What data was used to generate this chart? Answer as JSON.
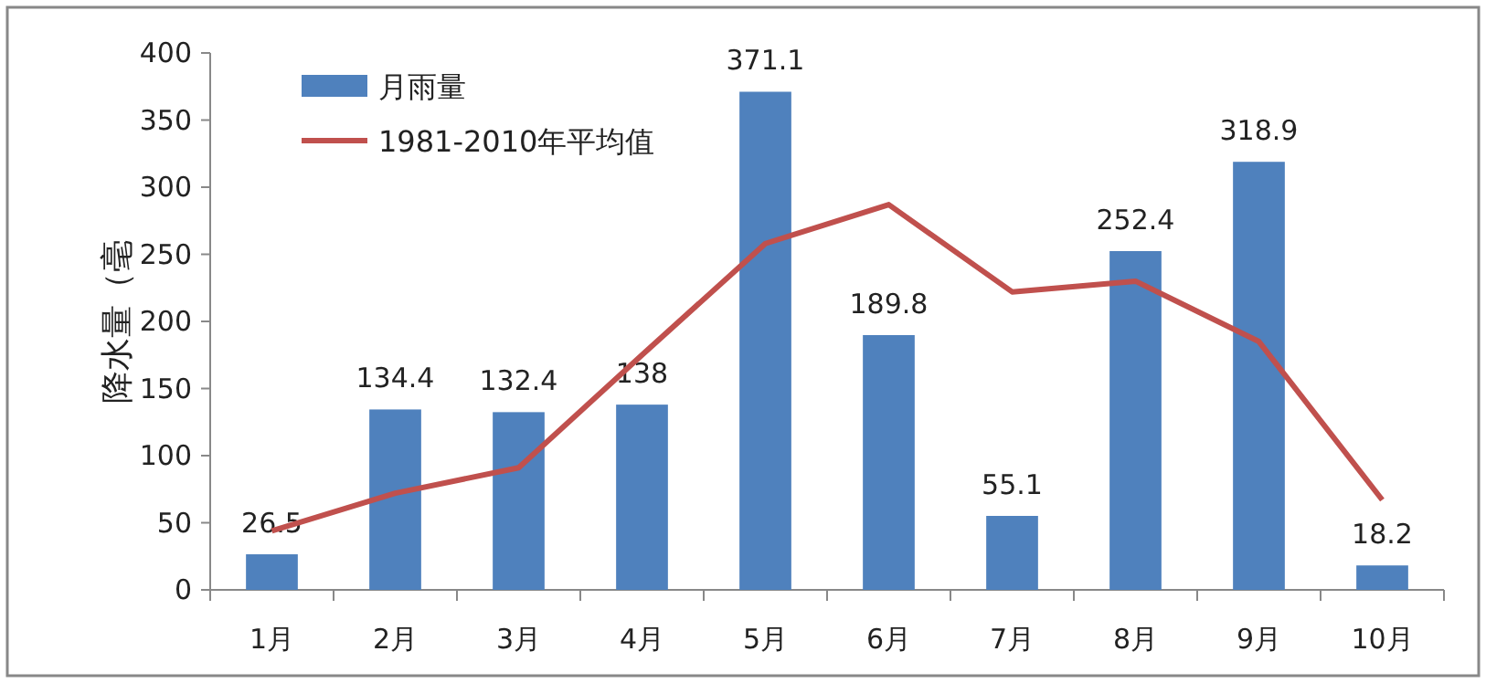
{
  "chart_data": {
    "type": "bar",
    "ylabel": "降水量（毫",
    "categories": [
      "1月",
      "2月",
      "3月",
      "4月",
      "5月",
      "6月",
      "7月",
      "8月",
      "9月",
      "10月"
    ],
    "series": [
      {
        "name": "月雨量",
        "color": "#4f81bd",
        "values": [
          26.5,
          134.4,
          132.4,
          138,
          371.1,
          189.8,
          55.1,
          252.4,
          318.9,
          18.2
        ],
        "value_labels": [
          "26.5",
          "134.4",
          "132.4",
          "138",
          "371.1",
          "189.8",
          "55.1",
          "252.4",
          "318.9",
          "18.2"
        ]
      },
      {
        "name": "1981-2010年平均值",
        "type": "line",
        "color": "#c0504d",
        "values": [
          44,
          72,
          91,
          175,
          258,
          287,
          222,
          230,
          185,
          67
        ]
      }
    ],
    "ylim": [
      0,
      400
    ],
    "yticks": [
      0,
      50,
      100,
      150,
      200,
      250,
      300,
      350,
      400
    ],
    "legend": "top left",
    "grid": false,
    "marker": "none"
  }
}
